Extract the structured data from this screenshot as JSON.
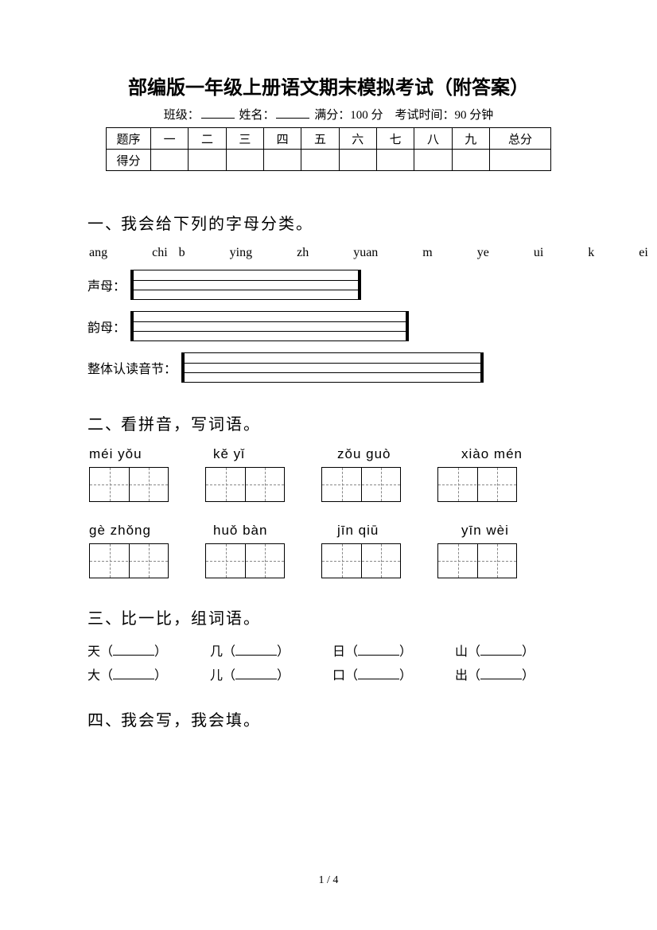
{
  "title": "部编版一年级上册语文期末模拟考试（附答案）",
  "meta": {
    "class_label": "班级：",
    "name_label": "姓名：",
    "full_score_label": "满分：",
    "full_score_value": "100 分",
    "time_label": "考试时间：",
    "time_value": "90 分钟"
  },
  "score_table": {
    "header_label": "题序",
    "row_label": "得分",
    "cols": [
      "一",
      "二",
      "三",
      "四",
      "五",
      "六",
      "七",
      "八",
      "九",
      "总分"
    ]
  },
  "q1": {
    "num": "一、",
    "title": "我会给下列的字母分类。",
    "items": "ang    chi b    ying    zh    yuan    m    ye    ui    k    ei    un",
    "cat1": "声母：",
    "cat2": "韵母：",
    "cat3": "整体认读音节：",
    "box_widths": {
      "c1": 290,
      "c2": 350,
      "c3": 380
    }
  },
  "q2": {
    "num": "二、",
    "title": "看拼音，写词语。",
    "row1": [
      "méi  yǒu",
      "kě   yǐ",
      "zǒu  guò",
      "xiào  mén"
    ],
    "row2": [
      "gè   zhǒng",
      "huǒ  bàn",
      "jīn   qiū",
      "yīn   wèi"
    ]
  },
  "q3": {
    "num": "三、",
    "title": "比一比，组词语。",
    "pairs": [
      [
        "天",
        "几",
        "日",
        "山"
      ],
      [
        "大",
        "儿",
        "口",
        "出"
      ]
    ]
  },
  "q4": {
    "num": "四、",
    "title": "我会写，我会填。"
  },
  "page_num": "1 / 4",
  "colors": {
    "text": "#000000",
    "bg": "#ffffff",
    "dash": "#888888"
  }
}
